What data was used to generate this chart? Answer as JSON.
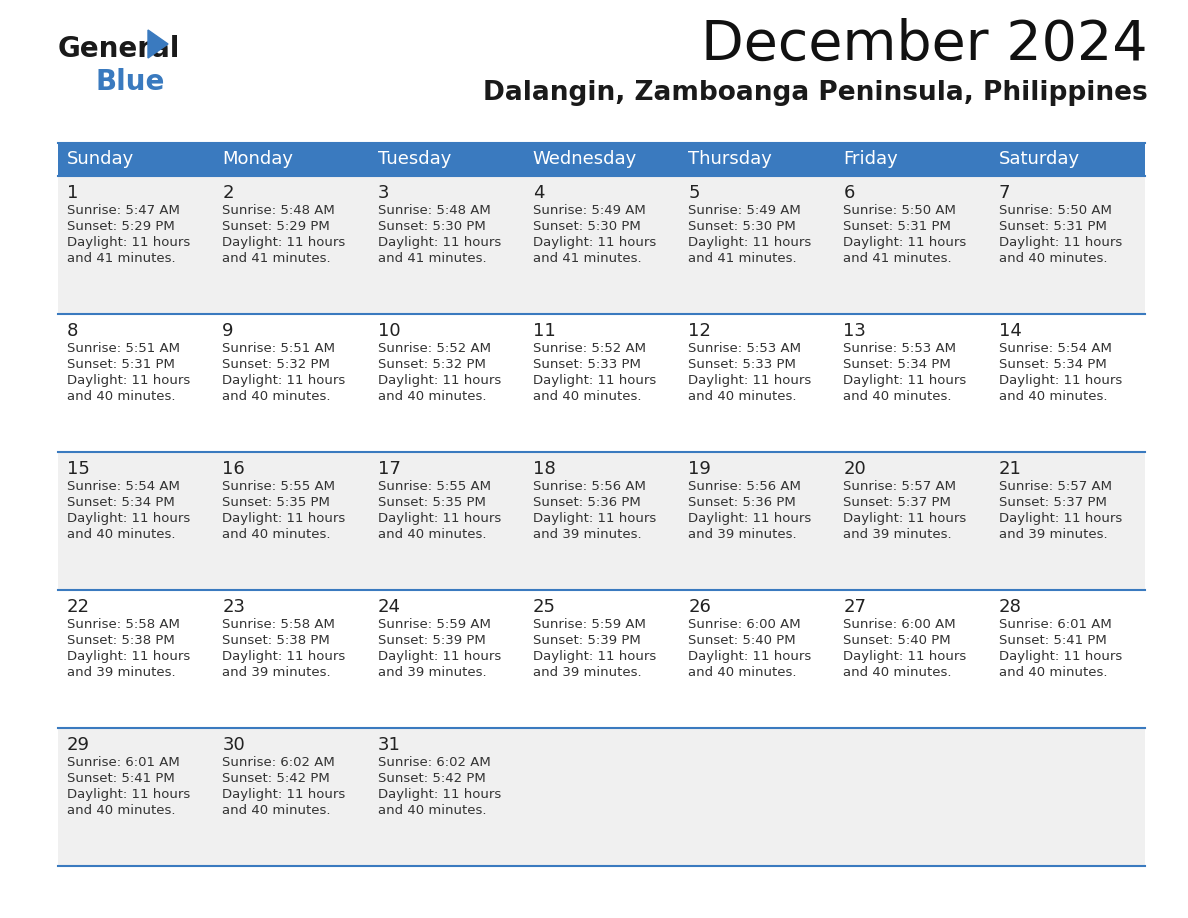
{
  "title": "December 2024",
  "subtitle": "Dalangin, Zamboanga Peninsula, Philippines",
  "header_bg": "#3a7abf",
  "header_text": "#ffffff",
  "row_bg_odd": "#f0f0f0",
  "row_bg_even": "#ffffff",
  "border_color": "#3a7abf",
  "text_color": "#333333",
  "days_of_week": [
    "Sunday",
    "Monday",
    "Tuesday",
    "Wednesday",
    "Thursday",
    "Friday",
    "Saturday"
  ],
  "weeks": [
    [
      {
        "day": 1,
        "sunrise": "5:47 AM",
        "sunset": "5:29 PM",
        "daylight": "11 hours and 41 minutes."
      },
      {
        "day": 2,
        "sunrise": "5:48 AM",
        "sunset": "5:29 PM",
        "daylight": "11 hours and 41 minutes."
      },
      {
        "day": 3,
        "sunrise": "5:48 AM",
        "sunset": "5:30 PM",
        "daylight": "11 hours and 41 minutes."
      },
      {
        "day": 4,
        "sunrise": "5:49 AM",
        "sunset": "5:30 PM",
        "daylight": "11 hours and 41 minutes."
      },
      {
        "day": 5,
        "sunrise": "5:49 AM",
        "sunset": "5:30 PM",
        "daylight": "11 hours and 41 minutes."
      },
      {
        "day": 6,
        "sunrise": "5:50 AM",
        "sunset": "5:31 PM",
        "daylight": "11 hours and 41 minutes."
      },
      {
        "day": 7,
        "sunrise": "5:50 AM",
        "sunset": "5:31 PM",
        "daylight": "11 hours and 40 minutes."
      }
    ],
    [
      {
        "day": 8,
        "sunrise": "5:51 AM",
        "sunset": "5:31 PM",
        "daylight": "11 hours and 40 minutes."
      },
      {
        "day": 9,
        "sunrise": "5:51 AM",
        "sunset": "5:32 PM",
        "daylight": "11 hours and 40 minutes."
      },
      {
        "day": 10,
        "sunrise": "5:52 AM",
        "sunset": "5:32 PM",
        "daylight": "11 hours and 40 minutes."
      },
      {
        "day": 11,
        "sunrise": "5:52 AM",
        "sunset": "5:33 PM",
        "daylight": "11 hours and 40 minutes."
      },
      {
        "day": 12,
        "sunrise": "5:53 AM",
        "sunset": "5:33 PM",
        "daylight": "11 hours and 40 minutes."
      },
      {
        "day": 13,
        "sunrise": "5:53 AM",
        "sunset": "5:34 PM",
        "daylight": "11 hours and 40 minutes."
      },
      {
        "day": 14,
        "sunrise": "5:54 AM",
        "sunset": "5:34 PM",
        "daylight": "11 hours and 40 minutes."
      }
    ],
    [
      {
        "day": 15,
        "sunrise": "5:54 AM",
        "sunset": "5:34 PM",
        "daylight": "11 hours and 40 minutes."
      },
      {
        "day": 16,
        "sunrise": "5:55 AM",
        "sunset": "5:35 PM",
        "daylight": "11 hours and 40 minutes."
      },
      {
        "day": 17,
        "sunrise": "5:55 AM",
        "sunset": "5:35 PM",
        "daylight": "11 hours and 40 minutes."
      },
      {
        "day": 18,
        "sunrise": "5:56 AM",
        "sunset": "5:36 PM",
        "daylight": "11 hours and 39 minutes."
      },
      {
        "day": 19,
        "sunrise": "5:56 AM",
        "sunset": "5:36 PM",
        "daylight": "11 hours and 39 minutes."
      },
      {
        "day": 20,
        "sunrise": "5:57 AM",
        "sunset": "5:37 PM",
        "daylight": "11 hours and 39 minutes."
      },
      {
        "day": 21,
        "sunrise": "5:57 AM",
        "sunset": "5:37 PM",
        "daylight": "11 hours and 39 minutes."
      }
    ],
    [
      {
        "day": 22,
        "sunrise": "5:58 AM",
        "sunset": "5:38 PM",
        "daylight": "11 hours and 39 minutes."
      },
      {
        "day": 23,
        "sunrise": "5:58 AM",
        "sunset": "5:38 PM",
        "daylight": "11 hours and 39 minutes."
      },
      {
        "day": 24,
        "sunrise": "5:59 AM",
        "sunset": "5:39 PM",
        "daylight": "11 hours and 39 minutes."
      },
      {
        "day": 25,
        "sunrise": "5:59 AM",
        "sunset": "5:39 PM",
        "daylight": "11 hours and 39 minutes."
      },
      {
        "day": 26,
        "sunrise": "6:00 AM",
        "sunset": "5:40 PM",
        "daylight": "11 hours and 40 minutes."
      },
      {
        "day": 27,
        "sunrise": "6:00 AM",
        "sunset": "5:40 PM",
        "daylight": "11 hours and 40 minutes."
      },
      {
        "day": 28,
        "sunrise": "6:01 AM",
        "sunset": "5:41 PM",
        "daylight": "11 hours and 40 minutes."
      }
    ],
    [
      {
        "day": 29,
        "sunrise": "6:01 AM",
        "sunset": "5:41 PM",
        "daylight": "11 hours and 40 minutes."
      },
      {
        "day": 30,
        "sunrise": "6:02 AM",
        "sunset": "5:42 PM",
        "daylight": "11 hours and 40 minutes."
      },
      {
        "day": 31,
        "sunrise": "6:02 AM",
        "sunset": "5:42 PM",
        "daylight": "11 hours and 40 minutes."
      },
      null,
      null,
      null,
      null
    ]
  ]
}
